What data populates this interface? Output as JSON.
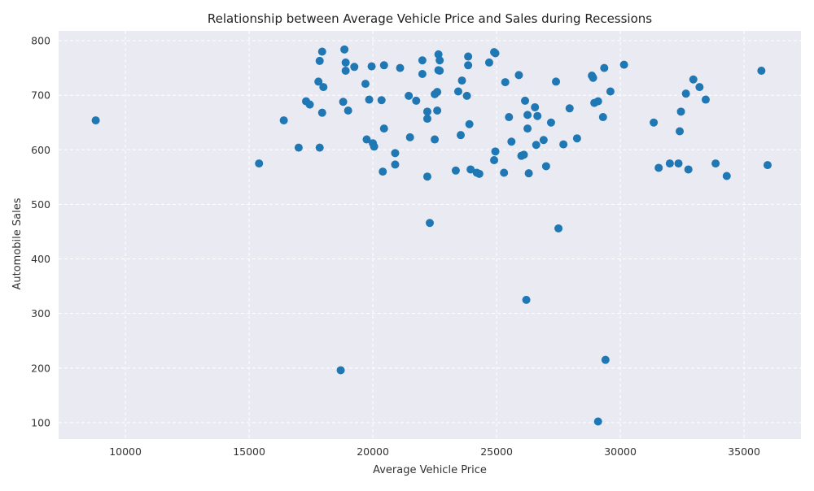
{
  "chart_data": {
    "type": "scatter",
    "title": "Relationship between Average Vehicle Price and Sales during Recessions",
    "xlabel": "Average Vehicle Price",
    "ylabel": "Automobile Sales",
    "xlim": [
      7300,
      37300
    ],
    "ylim": [
      70,
      818
    ],
    "xticks": [
      10000,
      15000,
      20000,
      25000,
      30000,
      35000
    ],
    "yticks": [
      100,
      200,
      300,
      400,
      500,
      600,
      700,
      800
    ],
    "grid": true,
    "legend": "none",
    "colors": {
      "marker": "#1f77b4",
      "plot_background": "#eaeaf2",
      "grid": "#ffffff"
    },
    "points": [
      [
        8800,
        654
      ],
      [
        15400,
        575
      ],
      [
        16400,
        654
      ],
      [
        17000,
        604
      ],
      [
        17300,
        689
      ],
      [
        17450,
        683
      ],
      [
        17800,
        725
      ],
      [
        17850,
        763
      ],
      [
        17850,
        604
      ],
      [
        17950,
        780
      ],
      [
        17950,
        668
      ],
      [
        18000,
        715
      ],
      [
        18700,
        196
      ],
      [
        18800,
        688
      ],
      [
        18850,
        784
      ],
      [
        18900,
        760
      ],
      [
        18900,
        745
      ],
      [
        19000,
        672
      ],
      [
        19250,
        752
      ],
      [
        19700,
        721
      ],
      [
        19750,
        619
      ],
      [
        19850,
        692
      ],
      [
        19950,
        753
      ],
      [
        20000,
        612
      ],
      [
        20050,
        606
      ],
      [
        20350,
        691
      ],
      [
        20400,
        560
      ],
      [
        20450,
        639
      ],
      [
        20450,
        755
      ],
      [
        20900,
        594
      ],
      [
        20900,
        573
      ],
      [
        21100,
        750
      ],
      [
        21450,
        699
      ],
      [
        21500,
        623
      ],
      [
        21750,
        690
      ],
      [
        22000,
        764
      ],
      [
        22000,
        739
      ],
      [
        22200,
        670
      ],
      [
        22200,
        657
      ],
      [
        22200,
        551
      ],
      [
        22300,
        466
      ],
      [
        22500,
        619
      ],
      [
        22500,
        702
      ],
      [
        22600,
        706
      ],
      [
        22600,
        672
      ],
      [
        22650,
        775
      ],
      [
        22650,
        746
      ],
      [
        22700,
        764
      ],
      [
        22700,
        745
      ],
      [
        23350,
        562
      ],
      [
        23450,
        707
      ],
      [
        23550,
        627
      ],
      [
        23600,
        727
      ],
      [
        23800,
        699
      ],
      [
        23850,
        771
      ],
      [
        23850,
        755
      ],
      [
        23900,
        647
      ],
      [
        23950,
        564
      ],
      [
        24200,
        558
      ],
      [
        24300,
        556
      ],
      [
        24700,
        760
      ],
      [
        24900,
        779
      ],
      [
        24900,
        581
      ],
      [
        24950,
        777
      ],
      [
        24950,
        597
      ],
      [
        25300,
        558
      ],
      [
        25350,
        724
      ],
      [
        25500,
        660
      ],
      [
        25600,
        615
      ],
      [
        25900,
        737
      ],
      [
        26000,
        589
      ],
      [
        26100,
        591
      ],
      [
        26150,
        690
      ],
      [
        26200,
        325
      ],
      [
        26250,
        664
      ],
      [
        26250,
        639
      ],
      [
        26300,
        557
      ],
      [
        26550,
        678
      ],
      [
        26600,
        609
      ],
      [
        26650,
        662
      ],
      [
        26900,
        618
      ],
      [
        27000,
        570
      ],
      [
        27200,
        650
      ],
      [
        27400,
        725
      ],
      [
        27500,
        456
      ],
      [
        27700,
        610
      ],
      [
        27950,
        676
      ],
      [
        28250,
        621
      ],
      [
        28850,
        736
      ],
      [
        28900,
        732
      ],
      [
        28950,
        686
      ],
      [
        29100,
        102
      ],
      [
        29100,
        689
      ],
      [
        29300,
        660
      ],
      [
        29350,
        750
      ],
      [
        29400,
        215
      ],
      [
        29600,
        707
      ],
      [
        30150,
        756
      ],
      [
        31350,
        650
      ],
      [
        31550,
        567
      ],
      [
        32000,
        575
      ],
      [
        32350,
        575
      ],
      [
        32400,
        634
      ],
      [
        32450,
        670
      ],
      [
        32650,
        703
      ],
      [
        32750,
        564
      ],
      [
        32950,
        729
      ],
      [
        33200,
        715
      ],
      [
        33450,
        692
      ],
      [
        33850,
        575
      ],
      [
        34300,
        552
      ],
      [
        35700,
        745
      ],
      [
        35950,
        572
      ]
    ]
  }
}
